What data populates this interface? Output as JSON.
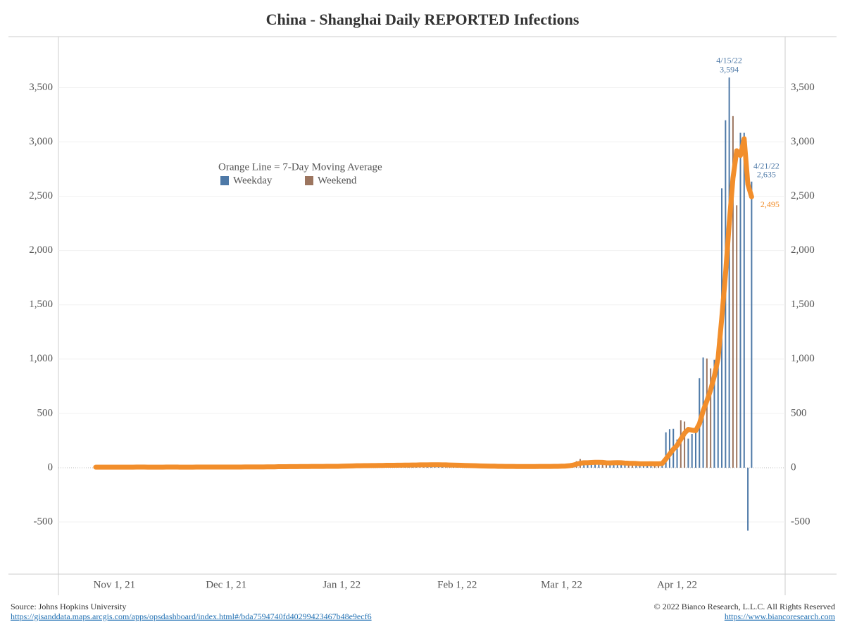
{
  "chart_data": {
    "type": "bar_line",
    "title": "China - Shanghai Daily REPORTED Infections",
    "legend_note": "Orange Line = 7-Day Moving Average",
    "xlim": [
      "2021-10-17",
      "2022-04-30"
    ],
    "xticks": [
      {
        "value": "2021-11-01",
        "label": "Nov 1, 21"
      },
      {
        "value": "2021-12-01",
        "label": "Dec 1, 21"
      },
      {
        "value": "2022-01-01",
        "label": "Jan 1, 22"
      },
      {
        "value": "2022-02-01",
        "label": "Feb 1, 22"
      },
      {
        "value": "2022-03-01",
        "label": "Mar 1, 22"
      },
      {
        "value": "2022-04-01",
        "label": "Apr 1, 22"
      }
    ],
    "ylim": [
      -980,
      3970
    ],
    "yticks": [
      -500,
      0,
      500,
      {
        "value": 1000,
        "label": "1,000"
      },
      {
        "value": 1500,
        "label": "1,500"
      },
      {
        "value": 2000,
        "label": "2,000"
      },
      {
        "value": 2500,
        "label": "2,500"
      },
      {
        "value": 3000,
        "label": "3,000"
      },
      {
        "value": 3500,
        "label": "3,500"
      }
    ],
    "grid": true,
    "x": [
      "2021-10-27",
      "2021-10-28",
      "2021-10-29",
      "2021-10-30",
      "2021-10-31",
      "2021-11-01",
      "2021-11-02",
      "2021-11-03",
      "2021-11-04",
      "2021-11-05",
      "2021-11-06",
      "2021-11-07",
      "2021-11-08",
      "2021-11-09",
      "2021-11-10",
      "2021-11-11",
      "2021-11-12",
      "2021-11-13",
      "2021-11-14",
      "2021-11-15",
      "2021-11-16",
      "2021-11-17",
      "2021-11-18",
      "2021-11-19",
      "2021-11-20",
      "2021-11-21",
      "2021-11-22",
      "2021-11-23",
      "2021-11-24",
      "2021-11-25",
      "2021-11-26",
      "2021-11-27",
      "2021-11-28",
      "2021-11-29",
      "2021-11-30",
      "2021-12-01",
      "2021-12-02",
      "2021-12-03",
      "2021-12-04",
      "2021-12-05",
      "2021-12-06",
      "2021-12-07",
      "2021-12-08",
      "2021-12-09",
      "2021-12-10",
      "2021-12-11",
      "2021-12-12",
      "2021-12-13",
      "2021-12-14",
      "2021-12-15",
      "2021-12-16",
      "2021-12-17",
      "2021-12-18",
      "2021-12-19",
      "2021-12-20",
      "2021-12-21",
      "2021-12-22",
      "2021-12-23",
      "2021-12-24",
      "2021-12-25",
      "2021-12-26",
      "2021-12-27",
      "2021-12-28",
      "2021-12-29",
      "2021-12-30",
      "2021-12-31",
      "2022-01-01",
      "2022-01-02",
      "2022-01-03",
      "2022-01-04",
      "2022-01-05",
      "2022-01-06",
      "2022-01-07",
      "2022-01-08",
      "2022-01-09",
      "2022-01-10",
      "2022-01-11",
      "2022-01-12",
      "2022-01-13",
      "2022-01-14",
      "2022-01-15",
      "2022-01-16",
      "2022-01-17",
      "2022-01-18",
      "2022-01-19",
      "2022-01-20",
      "2022-01-21",
      "2022-01-22",
      "2022-01-23",
      "2022-01-24",
      "2022-01-25",
      "2022-01-26",
      "2022-01-27",
      "2022-01-28",
      "2022-01-29",
      "2022-01-30",
      "2022-01-31",
      "2022-02-01",
      "2022-02-02",
      "2022-02-03",
      "2022-02-04",
      "2022-02-05",
      "2022-02-06",
      "2022-02-07",
      "2022-02-08",
      "2022-02-09",
      "2022-02-10",
      "2022-02-11",
      "2022-02-12",
      "2022-02-13",
      "2022-02-14",
      "2022-02-15",
      "2022-02-16",
      "2022-02-17",
      "2022-02-18",
      "2022-02-19",
      "2022-02-20",
      "2022-02-21",
      "2022-02-22",
      "2022-02-23",
      "2022-02-24",
      "2022-02-25",
      "2022-02-26",
      "2022-02-27",
      "2022-02-28",
      "2022-03-01",
      "2022-03-02",
      "2022-03-03",
      "2022-03-04",
      "2022-03-05",
      "2022-03-06",
      "2022-03-07",
      "2022-03-08",
      "2022-03-09",
      "2022-03-10",
      "2022-03-11",
      "2022-03-12",
      "2022-03-13",
      "2022-03-14",
      "2022-03-15",
      "2022-03-16",
      "2022-03-17",
      "2022-03-18",
      "2022-03-19",
      "2022-03-20",
      "2022-03-21",
      "2022-03-22",
      "2022-03-23",
      "2022-03-24",
      "2022-03-25",
      "2022-03-26",
      "2022-03-27",
      "2022-03-28",
      "2022-03-29",
      "2022-03-30",
      "2022-03-31",
      "2022-04-01",
      "2022-04-02",
      "2022-04-03",
      "2022-04-04",
      "2022-04-05",
      "2022-04-06",
      "2022-04-07",
      "2022-04-08",
      "2022-04-09",
      "2022-04-10",
      "2022-04-11",
      "2022-04-12",
      "2022-04-13",
      "2022-04-14",
      "2022-04-15",
      "2022-04-16",
      "2022-04-17",
      "2022-04-18",
      "2022-04-19",
      "2022-04-20",
      "2022-04-21"
    ],
    "series": [
      {
        "name": "Weekday",
        "color": "#4e79a7",
        "values": [
          4,
          6,
          5,
          null,
          null,
          5,
          8,
          4,
          6,
          3,
          null,
          null,
          9,
          5,
          6,
          4,
          3,
          null,
          null,
          5,
          7,
          4,
          6,
          5,
          null,
          null,
          7,
          6,
          4,
          9,
          5,
          null,
          null,
          4,
          7,
          6,
          5,
          8,
          null,
          null,
          6,
          9,
          7,
          5,
          8,
          null,
          null,
          12,
          9,
          7,
          11,
          8,
          null,
          null,
          9,
          12,
          14,
          10,
          11,
          null,
          null,
          9,
          13,
          16,
          14,
          12,
          null,
          null,
          15,
          22,
          19,
          17,
          21,
          null,
          null,
          18,
          23,
          26,
          22,
          19,
          null,
          null,
          24,
          21,
          27,
          30,
          26,
          null,
          null,
          32,
          27,
          24,
          29,
          26,
          null,
          null,
          20,
          18,
          15,
          20,
          17,
          null,
          null,
          13,
          15,
          12,
          14,
          11,
          null,
          null,
          12,
          9,
          11,
          8,
          10,
          null,
          null,
          11,
          14,
          10,
          13,
          12,
          null,
          null,
          14,
          20,
          15,
          25,
          40,
          null,
          null,
          45,
          35,
          30,
          50,
          55,
          null,
          null,
          62,
          45,
          40,
          35,
          30,
          null,
          null,
          36,
          28,
          33,
          45,
          40,
          null,
          null,
          50,
          326,
          355,
          358,
          260,
          null,
          null,
          268,
          311,
          322,
          824,
          1015,
          null,
          null,
          994,
          1189,
          2573,
          3200,
          3594,
          null,
          null,
          3084,
          3084,
          -580,
          2635
        ]
      },
      {
        "name": "Weekend",
        "color": "#9c755f",
        "values": [
          null,
          null,
          null,
          3,
          7,
          null,
          null,
          null,
          null,
          null,
          2,
          7,
          null,
          null,
          null,
          null,
          null,
          8,
          6,
          null,
          null,
          null,
          null,
          null,
          3,
          8,
          null,
          null,
          null,
          null,
          null,
          6,
          8,
          null,
          null,
          null,
          null,
          null,
          7,
          4,
          null,
          null,
          null,
          null,
          null,
          6,
          10,
          null,
          null,
          null,
          null,
          null,
          10,
          13,
          null,
          null,
          null,
          null,
          null,
          15,
          12,
          null,
          null,
          null,
          null,
          null,
          18,
          20,
          null,
          null,
          null,
          null,
          null,
          24,
          20,
          null,
          null,
          null,
          null,
          null,
          25,
          28,
          null,
          null,
          null,
          null,
          null,
          23,
          28,
          null,
          null,
          null,
          null,
          null,
          22,
          25,
          null,
          null,
          null,
          null,
          null,
          14,
          16,
          null,
          null,
          null,
          null,
          null,
          13,
          10,
          null,
          null,
          null,
          null,
          null,
          12,
          9,
          null,
          null,
          null,
          null,
          null,
          15,
          11,
          null,
          null,
          null,
          null,
          null,
          60,
          80,
          null,
          null,
          null,
          null,
          null,
          40,
          38,
          null,
          null,
          null,
          null,
          null,
          42,
          38,
          null,
          null,
          null,
          null,
          null,
          30,
          35,
          null,
          null,
          null,
          null,
          null,
          438,
          425,
          null,
          null,
          null,
          null,
          null,
          1006,
          914,
          null,
          null,
          null,
          null,
          null,
          3238,
          2417,
          null,
          null,
          null,
          null
        ]
      }
    ],
    "line": {
      "color": "#f28e2b",
      "values": [
        5,
        5,
        5,
        5,
        5,
        5,
        5,
        5,
        5,
        5,
        5,
        6,
        6,
        6,
        5,
        5,
        5,
        5,
        5,
        6,
        6,
        6,
        6,
        5,
        5,
        5,
        5,
        6,
        6,
        6,
        6,
        6,
        6,
        6,
        6,
        6,
        6,
        6,
        6,
        6,
        7,
        7,
        7,
        7,
        7,
        7,
        8,
        8,
        8,
        9,
        9,
        9,
        10,
        10,
        10,
        11,
        11,
        11,
        12,
        12,
        12,
        12,
        13,
        13,
        13,
        13,
        14,
        15,
        16,
        17,
        18,
        18,
        19,
        19,
        20,
        20,
        21,
        21,
        22,
        22,
        22,
        23,
        23,
        24,
        24,
        25,
        25,
        26,
        26,
        26,
        27,
        27,
        27,
        26,
        26,
        25,
        24,
        23,
        22,
        21,
        20,
        19,
        18,
        17,
        16,
        15,
        14,
        14,
        13,
        13,
        12,
        12,
        12,
        11,
        11,
        11,
        11,
        11,
        11,
        12,
        12,
        12,
        12,
        13,
        13,
        14,
        15,
        18,
        23,
        32,
        41,
        46,
        46,
        48,
        50,
        50,
        49,
        45,
        44,
        46,
        47,
        46,
        43,
        41,
        40,
        39,
        36,
        36,
        36,
        37,
        36,
        36,
        38,
        80,
        125,
        170,
        205,
        262,
        318,
        353,
        346,
        341,
        405,
        524,
        616,
        716,
        843,
        1008,
        1380,
        1783,
        2252,
        2667,
        2919,
        2875,
        3030,
        2610,
        2495
      ]
    },
    "annotations": [
      {
        "x": "2022-04-15",
        "date": "4/15/22",
        "value": 3594,
        "label": "3,594",
        "color": "#4e79a7"
      },
      {
        "x": "2022-04-21",
        "date": "4/21/22",
        "value": 2635,
        "label": "2,635",
        "color": "#4e79a7"
      },
      {
        "x": "2022-04-21",
        "value": 2495,
        "label": "2,495",
        "color": "#f28e2b"
      }
    ]
  },
  "footer": {
    "source": "Source: Johns Hopkins University",
    "source_url": "https://gisanddata.maps.arcgis.com/apps/opsdashboard/index.html#/bda7594740fd40299423467b48e9ecf6",
    "copyright": "© 2022 Bianco Research, L.L.C. All Rights Reserved",
    "site_url": "https://www.biancoresearch.com"
  }
}
